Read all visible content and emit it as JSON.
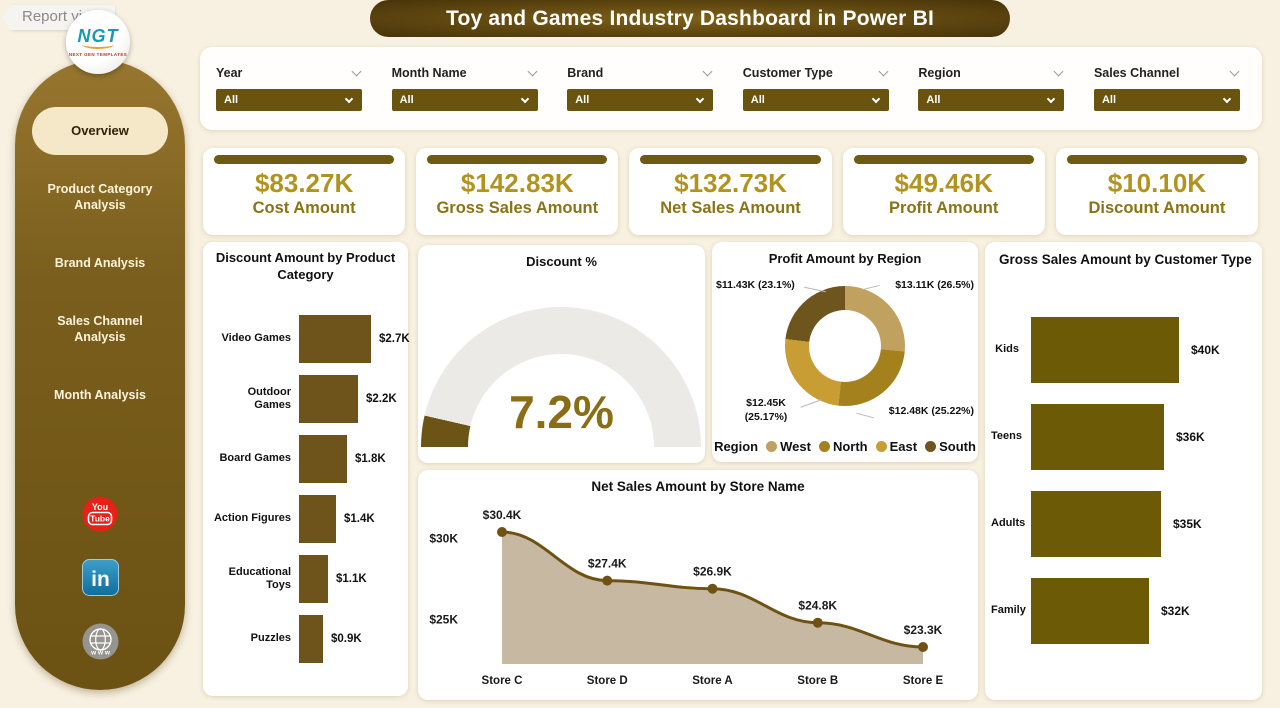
{
  "report_view_label": "Report view",
  "title": "Toy and Games Industry Dashboard in Power BI",
  "logo": {
    "text": "NGT",
    "subtext": "NEXT GEN TEMPLATES"
  },
  "sidebar": {
    "items": [
      {
        "label": "Overview",
        "active": true
      },
      {
        "label": "Product Category Analysis",
        "active": false
      },
      {
        "label": "Brand Analysis",
        "active": false
      },
      {
        "label": "Sales Channel Analysis",
        "active": false
      },
      {
        "label": "Month Analysis",
        "active": false
      }
    ],
    "social": [
      "youtube",
      "linkedin",
      "website"
    ]
  },
  "filters": [
    {
      "label": "Year",
      "value": "All"
    },
    {
      "label": "Month Name",
      "value": "All"
    },
    {
      "label": "Brand",
      "value": "All"
    },
    {
      "label": "Customer Type",
      "value": "All"
    },
    {
      "label": "Region",
      "value": "All"
    },
    {
      "label": "Sales Channel",
      "value": "All"
    }
  ],
  "kpis": [
    {
      "value": "$83.27K",
      "label": "Cost Amount"
    },
    {
      "value": "$142.83K",
      "label": "Gross Sales Amount"
    },
    {
      "value": "$132.73K",
      "label": "Net Sales Amount"
    },
    {
      "value": "$49.46K",
      "label": "Profit Amount"
    },
    {
      "value": "$10.10K",
      "label": "Discount Amount"
    }
  ],
  "colors": {
    "background": "#f8f1e1",
    "accent_dark": "#6b5311",
    "kpi_value": "#b3931f",
    "kpi_label": "#8a7414",
    "sidebar_top": "#97762f",
    "sidebar_bottom": "#6b5213",
    "gauge_value_text": "#8a6d15"
  },
  "chart_data": [
    {
      "type": "bar",
      "orientation": "horizontal",
      "title": "Discount Amount by Product Category",
      "categories": [
        "Video Games",
        "Outdoor Games",
        "Board Games",
        "Action Figures",
        "Educational Toys",
        "Puzzles"
      ],
      "values": [
        2.7,
        2.2,
        1.8,
        1.4,
        1.1,
        0.9
      ],
      "labels": [
        "$2.7K",
        "$2.2K",
        "$1.8K",
        "$1.4K",
        "$1.1K",
        "$0.9K"
      ],
      "bar_color": "#6e541a"
    },
    {
      "type": "gauge",
      "title": "Discount %",
      "value": 7.2,
      "display": "7.2%",
      "min": 0,
      "max": 100,
      "fill_color": "#6b5415",
      "track_color": "#eceae6"
    },
    {
      "type": "pie",
      "variant": "donut",
      "title": "Profit Amount by Region",
      "legend_title": "Region",
      "legend_position": "bottom",
      "slices": [
        {
          "name": "West",
          "value": 13.11,
          "pct": 26.5,
          "label": "$13.11K (26.5%)",
          "color": "#c0a160"
        },
        {
          "name": "North",
          "value": 12.48,
          "pct": 25.22,
          "label": "$12.48K (25.22%)",
          "color": "#a5811e"
        },
        {
          "name": "East",
          "value": 12.45,
          "pct": 25.17,
          "label": "$12.45K (25.17%)",
          "color": "#c89d33"
        },
        {
          "name": "South",
          "value": 11.43,
          "pct": 23.1,
          "label": "$11.43K (23.1%)",
          "color": "#6e541d"
        }
      ]
    },
    {
      "type": "bar",
      "orientation": "horizontal",
      "title": "Gross Sales Amount by Customer Type",
      "categories": [
        "Kids",
        "Teens",
        "Adults",
        "Family"
      ],
      "values": [
        40,
        36,
        35,
        32
      ],
      "labels": [
        "$40K",
        "$36K",
        "$35K",
        "$32K"
      ],
      "bar_color": "#6d5a07"
    },
    {
      "type": "area",
      "title": "Net Sales Amount by Store Name",
      "x": [
        "Store C",
        "Store D",
        "Store A",
        "Store B",
        "Store E"
      ],
      "y": [
        30.4,
        27.4,
        26.9,
        24.8,
        23.3
      ],
      "labels": [
        "$30.4K",
        "$27.4K",
        "$26.9K",
        "$24.8K",
        "$23.3K"
      ],
      "yticks": [
        {
          "value": 30,
          "label": "$30K"
        },
        {
          "value": 25,
          "label": "$25K"
        }
      ],
      "line_color": "#6f5213",
      "fill_color": "#c7b9a1"
    }
  ]
}
